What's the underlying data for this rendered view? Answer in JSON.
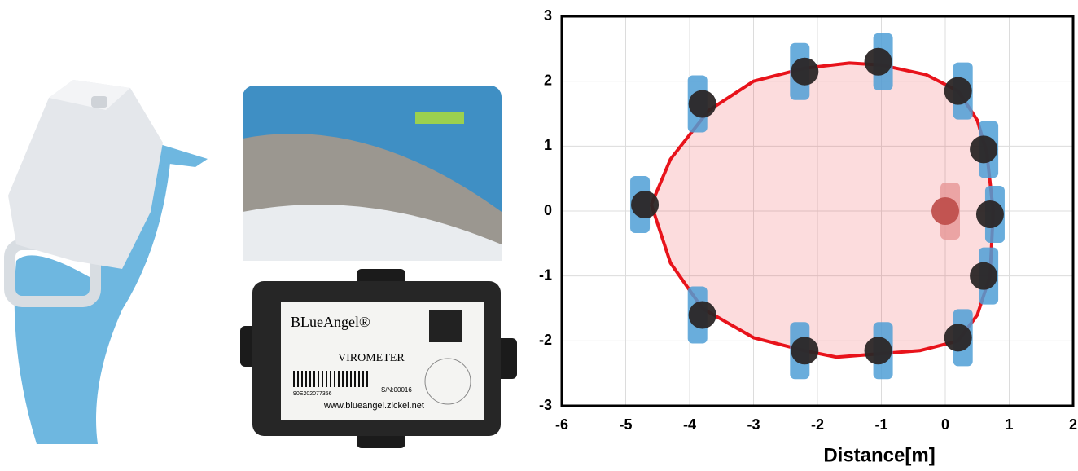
{
  "device_label": {
    "brand": "BLueAngel®",
    "product": "VIROMETER",
    "barcode_number": "90E202077356",
    "serial": "S/N:00016",
    "url": "www.blueangel.zickel.net"
  },
  "chart_data": {
    "type": "scatter",
    "xlabel": "Distance[m]",
    "xlim": [
      -6,
      2
    ],
    "ylim": [
      -3,
      3
    ],
    "xticks": [
      -6,
      -5,
      -4,
      -3,
      -2,
      -1,
      0,
      1,
      2
    ],
    "yticks": [
      -3,
      -2,
      -1,
      0,
      1,
      2,
      3
    ],
    "grid": true,
    "series": [
      {
        "color": "#2b2626",
        "x": [
          -4.7,
          -3.8,
          -2.2,
          -1.05,
          0.2,
          0.6,
          0.7,
          0.6,
          0.2,
          -1.05,
          -2.2,
          -3.8
        ],
        "values": [
          0.1,
          1.65,
          2.15,
          2.3,
          1.85,
          0.95,
          -0.05,
          -1.0,
          -1.95,
          -2.15,
          -2.15,
          -1.6
        ]
      },
      {
        "color": "#c0504d",
        "x": [
          0
        ],
        "values": [
          0
        ]
      }
    ],
    "curve": {
      "color": "#e8131b",
      "x": [
        -4.6,
        -4.3,
        -3.7,
        -3,
        -2.2,
        -1.5,
        -1,
        -0.3,
        0.2,
        0.5,
        0.65,
        0.75,
        0.7,
        0.5,
        0.2,
        -0.4,
        -1.05,
        -1.7,
        -2.2,
        -3,
        -3.8,
        -4.3,
        -4.6
      ],
      "values": [
        0.1,
        0.8,
        1.55,
        2.0,
        2.2,
        2.28,
        2.25,
        2.1,
        1.85,
        1.4,
        0.9,
        0,
        -1,
        -1.6,
        -2.0,
        -2.15,
        -2.2,
        -2.25,
        -2.15,
        -1.95,
        -1.5,
        -0.8,
        0.1
      ]
    }
  }
}
